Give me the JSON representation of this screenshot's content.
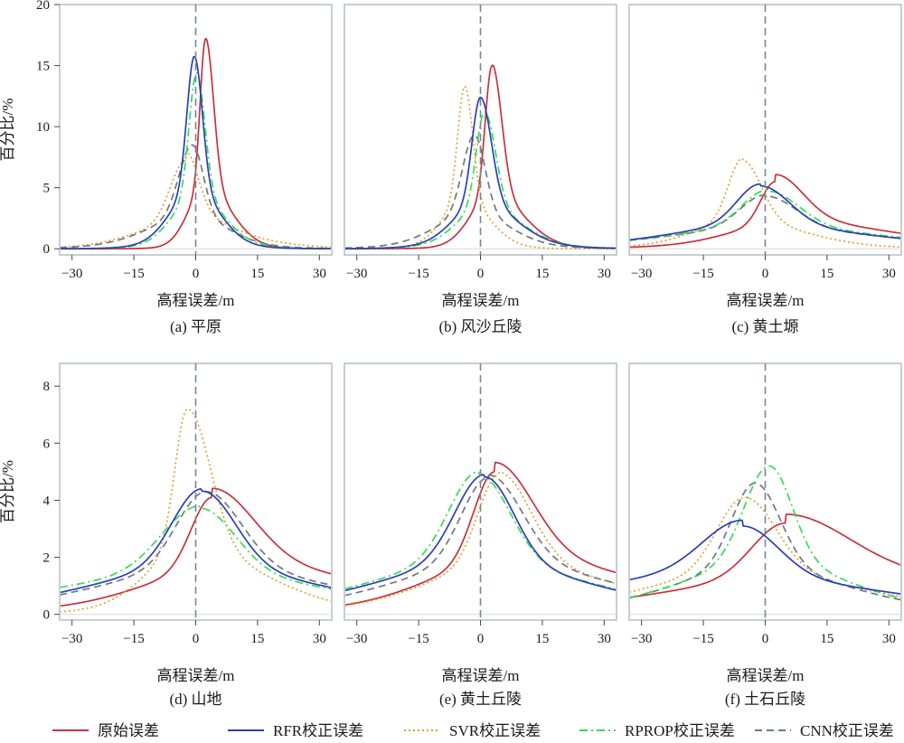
{
  "legend": [
    {
      "label": "原始误差",
      "color": "#c8323c",
      "dash": "solid"
    },
    {
      "label": "RFR校正误差",
      "color": "#2b3fb6",
      "dash": "solid"
    },
    {
      "label": "SVR校正误差",
      "color": "#e0a030",
      "dash": "dotted"
    },
    {
      "label": "RPROP校正误差",
      "color": "#33dd55",
      "dash": "dashdot"
    },
    {
      "label": "CNN校正误差",
      "color": "#707880",
      "dash": "dashed"
    }
  ],
  "chart_data": [
    {
      "type": "line",
      "caption": "(a) 平原",
      "xlabel": "高程误差/m",
      "ylabel": "百分比/%",
      "xlim": [
        -33,
        33
      ],
      "ylim": [
        -0.5,
        20
      ],
      "xticks": [
        -30,
        -15,
        0,
        15,
        30
      ],
      "xticklabels": [
        "−30",
        "−15",
        "0",
        "15",
        "30"
      ],
      "yticks": [
        0,
        5,
        10,
        15,
        20
      ],
      "vline": 0,
      "series": [
        {
          "name": "原始误差",
          "peak": 2.4,
          "height": 17.2,
          "left_width": 1.3,
          "right_width": 1.9,
          "left_tail": 0.25,
          "right_tail": 0.3
        },
        {
          "name": "RFR校正误差",
          "peak": -0.3,
          "height": 15.8,
          "left_width": 1.8,
          "right_width": 1.9,
          "left_tail": 0.5,
          "right_tail": 0.4
        },
        {
          "name": "SVR校正误差",
          "peak": -2.5,
          "height": 7.2,
          "left_width": 3.6,
          "right_width": 3.0,
          "left_tail": 0.2,
          "right_tail": 1.1
        },
        {
          "name": "RPROP校正误差",
          "peak": 0.2,
          "height": 14.3,
          "left_width": 1.8,
          "right_width": 2.0,
          "left_tail": 0.4,
          "right_tail": 0.5
        },
        {
          "name": "CNN校正误差",
          "peak": -0.8,
          "height": 8.5,
          "left_width": 3.2,
          "right_width": 2.6,
          "left_tail": 0.4,
          "right_tail": 0.4
        }
      ]
    },
    {
      "type": "line",
      "caption": "(b) 风沙丘陵",
      "xlabel": "高程误差/m",
      "ylabel": "",
      "xlim": [
        -33,
        33
      ],
      "ylim": [
        -0.5,
        20
      ],
      "xticks": [
        -30,
        -15,
        0,
        15,
        30
      ],
      "xticklabels": [
        "−30",
        "−15",
        "0",
        "15",
        "30"
      ],
      "yticks": [],
      "vline": 0,
      "series": [
        {
          "name": "原始误差",
          "peak": 2.8,
          "height": 15.0,
          "left_width": 1.6,
          "right_width": 2.3,
          "left_tail": 0.3,
          "right_tail": 0.4
        },
        {
          "name": "RFR校正误差",
          "peak": 0.0,
          "height": 12.4,
          "left_width": 2.0,
          "right_width": 2.6,
          "left_tail": 0.5,
          "right_tail": 0.5
        },
        {
          "name": "SVR校正误差",
          "peak": -3.8,
          "height": 13.3,
          "left_width": 1.7,
          "right_width": 1.9,
          "left_tail": 0.2,
          "right_tail": 0.2
        },
        {
          "name": "RPROP校正误差",
          "peak": 1.0,
          "height": 11.2,
          "left_width": 2.0,
          "right_width": 2.6,
          "left_tail": 0.5,
          "right_tail": 0.5
        },
        {
          "name": "CNN校正误差",
          "peak": -1.5,
          "height": 9.3,
          "left_width": 2.8,
          "right_width": 2.6,
          "left_tail": 0.4,
          "right_tail": 0.4
        }
      ]
    },
    {
      "type": "line",
      "caption": "(c) 黄土塬",
      "xlabel": "高程误差/m",
      "ylabel": "",
      "xlim": [
        -33,
        33
      ],
      "ylim": [
        -0.5,
        20
      ],
      "xticks": [
        -30,
        -15,
        0,
        15,
        30
      ],
      "xticklabels": [
        "−30",
        "−15",
        "0",
        "15",
        "30"
      ],
      "yticks": [],
      "vline": 0,
      "series": [
        {
          "name": "原始误差",
          "peak": 2.5,
          "height": 5.5,
          "left_width": 3.5,
          "right_width": 6.5,
          "left_tail": 0.6,
          "right_tail": 1.3
        },
        {
          "name": "RFR校正误差",
          "peak": -1.2,
          "height": 5.3,
          "left_width": 5.5,
          "right_width": 7.0,
          "left_tail": 1.0,
          "right_tail": 0.8
        },
        {
          "name": "SVR校正误差",
          "peak": -5.5,
          "height": 7.4,
          "left_width": 3.3,
          "right_width": 4.5,
          "left_tail": 0.5,
          "right_tail": 0.3
        },
        {
          "name": "RPROP校正误差",
          "peak": 0.5,
          "height": 4.8,
          "left_width": 6.0,
          "right_width": 7.5,
          "left_tail": 0.9,
          "right_tail": 0.8
        },
        {
          "name": "CNN校正误差",
          "peak": 0.0,
          "height": 4.4,
          "left_width": 6.0,
          "right_width": 7.5,
          "left_tail": 0.9,
          "right_tail": 0.8
        }
      ]
    },
    {
      "type": "line",
      "caption": "(d) 山地",
      "xlabel": "高程误差/m",
      "ylabel": "百分比/%",
      "xlim": [
        -33,
        33
      ],
      "ylim": [
        -0.2,
        8.8
      ],
      "xticks": [
        -30,
        -15,
        0,
        15,
        30
      ],
      "xticklabels": [
        "−30",
        "−15",
        "0",
        "15",
        "30"
      ],
      "yticks": [
        0,
        2,
        4,
        6,
        8
      ],
      "vline": 0,
      "series": [
        {
          "name": "原始误差",
          "peak": 4.0,
          "height": 4.1,
          "left_width": 5.0,
          "right_width": 10.0,
          "left_tail": 0.6,
          "right_tail": 1.0
        },
        {
          "name": "RFR校正误差",
          "peak": 1.5,
          "height": 4.4,
          "left_width": 7.0,
          "right_width": 8.0,
          "left_tail": 0.8,
          "right_tail": 0.7
        },
        {
          "name": "SVR校正误差",
          "peak": -2.0,
          "height": 7.2,
          "left_width": 3.0,
          "right_width": 5.5,
          "left_tail": 0.4,
          "right_tail": 0.4
        },
        {
          "name": "RPROP校正误差",
          "peak": 1.0,
          "height": 3.8,
          "left_width": 9.0,
          "right_width": 8.5,
          "left_tail": 0.8,
          "right_tail": 0.7
        },
        {
          "name": "CNN校正误差",
          "peak": 2.5,
          "height": 4.3,
          "left_width": 7.0,
          "right_width": 8.5,
          "left_tail": 0.7,
          "right_tail": 0.7
        }
      ]
    },
    {
      "type": "line",
      "caption": "(e) 黄土丘陵",
      "xlabel": "高程误差/m",
      "ylabel": "",
      "xlim": [
        -33,
        33
      ],
      "ylim": [
        -0.2,
        8.8
      ],
      "xticks": [
        -30,
        -15,
        0,
        15,
        30
      ],
      "xticklabels": [
        "−30",
        "−15",
        "0",
        "15",
        "30"
      ],
      "yticks": [],
      "vline": 0,
      "series": [
        {
          "name": "原始误差",
          "peak": 3.5,
          "height": 5.0,
          "left_width": 5.0,
          "right_width": 9.0,
          "left_tail": 0.6,
          "right_tail": 1.0
        },
        {
          "name": "RFR校正误差",
          "peak": 1.0,
          "height": 4.9,
          "left_width": 7.0,
          "right_width": 7.0,
          "left_tail": 0.8,
          "right_tail": 0.7
        },
        {
          "name": "SVR校正误差",
          "peak": 4.5,
          "height": 4.9,
          "left_width": 5.0,
          "right_width": 7.5,
          "left_tail": 0.6,
          "right_tail": 0.7
        },
        {
          "name": "RPROP校正误差",
          "peak": -0.5,
          "height": 5.0,
          "left_width": 7.0,
          "right_width": 7.5,
          "left_tail": 0.8,
          "right_tail": 0.7
        },
        {
          "name": "CNN校正误差",
          "peak": 2.0,
          "height": 4.8,
          "left_width": 6.5,
          "right_width": 8.0,
          "left_tail": 0.7,
          "right_tail": 0.8
        }
      ]
    },
    {
      "type": "line",
      "caption": "(f) 土石丘陵",
      "xlabel": "高程误差/m",
      "ylabel": "",
      "xlim": [
        -33,
        33
      ],
      "ylim": [
        -0.2,
        8.8
      ],
      "xticks": [
        -30,
        -15,
        0,
        15,
        30
      ],
      "xticklabels": [
        "−30",
        "−15",
        "0",
        "15",
        "30"
      ],
      "yticks": [],
      "vline": 0,
      "series": [
        {
          "name": "原始误差",
          "peak": 5.0,
          "height": 3.2,
          "left_width": 8.0,
          "right_width": 15.0,
          "left_tail": 0.6,
          "right_tail": 1.0
        },
        {
          "name": "RFR校正误差",
          "peak": -5.5,
          "height": 3.3,
          "left_width": 9.5,
          "right_width": 8.5,
          "left_tail": 1.2,
          "right_tail": 0.9
        },
        {
          "name": "SVR校正误差",
          "peak": -5.0,
          "height": 4.1,
          "left_width": 6.5,
          "right_width": 7.5,
          "left_tail": 0.6,
          "right_tail": 0.6
        },
        {
          "name": "RPROP校正误差",
          "peak": 1.0,
          "height": 5.2,
          "left_width": 6.0,
          "right_width": 5.5,
          "left_tail": 0.6,
          "right_tail": 0.6
        },
        {
          "name": "CNN校正误差",
          "peak": -2.5,
          "height": 4.6,
          "left_width": 5.5,
          "right_width": 6.0,
          "left_tail": 0.6,
          "right_tail": 0.6
        }
      ]
    }
  ]
}
